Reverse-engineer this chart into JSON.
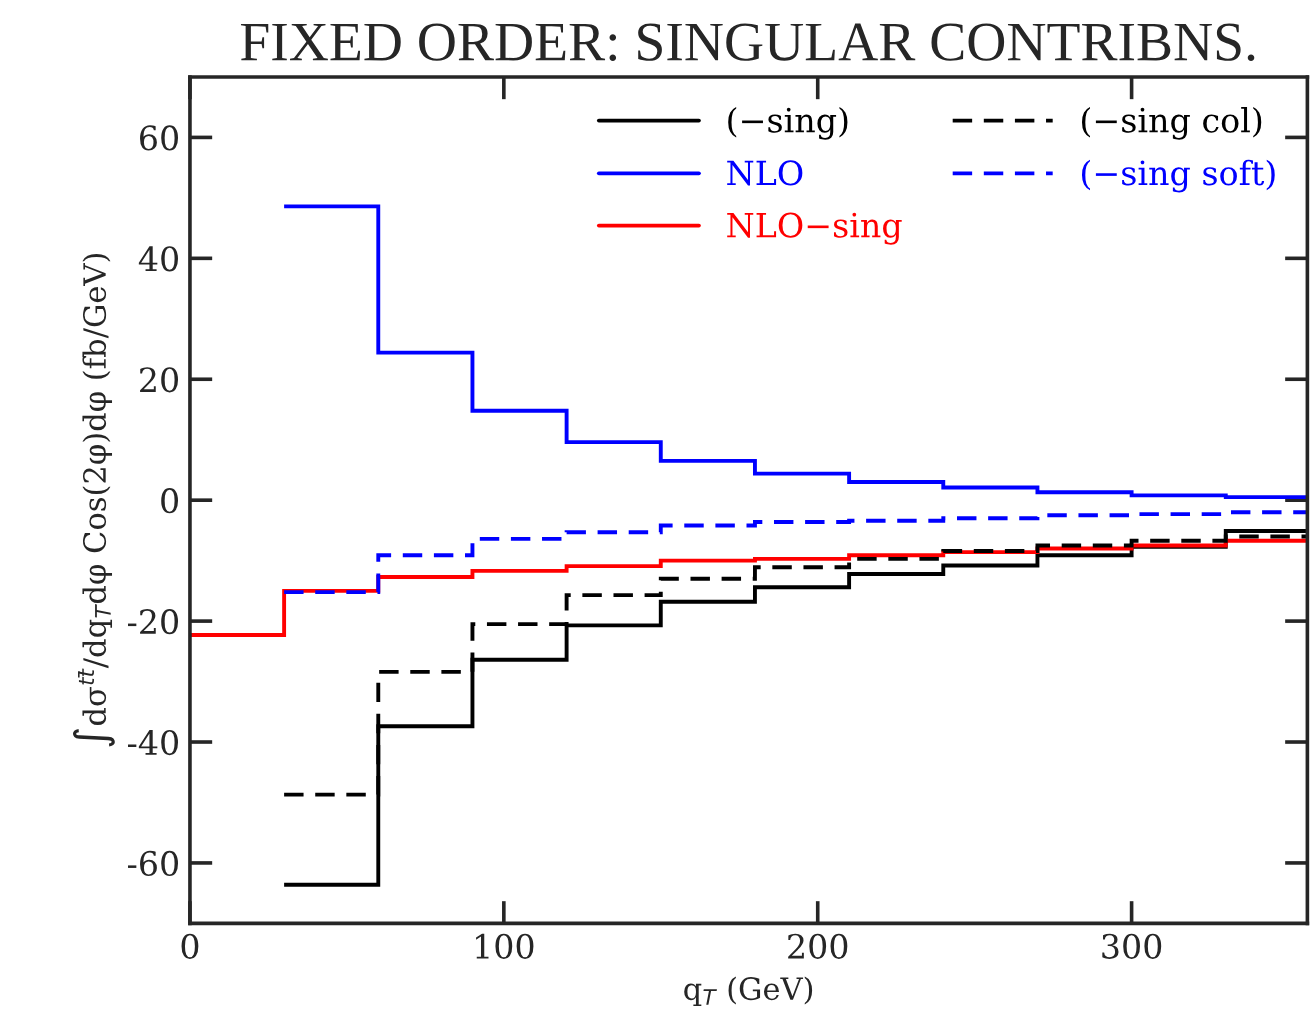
{
  "chart_data": {
    "type": "step",
    "title": "FIXED ORDER: SINGULAR CONTRIBNS.",
    "xlabel": "q$_{T}$ (GeV)",
    "ylabel": "∫dσ$^{tt̄}$/dq$_{T}$dφ Cos(2φ)dφ (fb/GeV)",
    "x": [
      0,
      30,
      60,
      90,
      120,
      150,
      180,
      210,
      240,
      270,
      300,
      330
    ],
    "series": [
      {
        "name": "(−sing)",
        "color": "#000000",
        "line_style": "solid",
        "values": [
          null,
          -63.6,
          -37.4,
          -26.4,
          -20.7,
          -16.8,
          -14.4,
          -12.2,
          -10.8,
          -9.1,
          -7.7,
          -5.1
        ]
      },
      {
        "name": "NLO",
        "color": "#0000ff",
        "line_style": "solid",
        "values": [
          null,
          48.6,
          24.4,
          14.8,
          9.6,
          6.5,
          4.4,
          3.0,
          2.1,
          1.3,
          0.8,
          0.5
        ]
      },
      {
        "name": "NLO−sing",
        "color": "#ff0000",
        "line_style": "solid",
        "values": [
          -22.3,
          -15.0,
          -12.7,
          -11.7,
          -10.9,
          -10.0,
          -9.7,
          -9.1,
          -8.6,
          -8.0,
          -7.5,
          -6.7
        ]
      },
      {
        "name": "(−sing col)",
        "color": "#000000",
        "line_style": "dashed",
        "values": [
          null,
          -48.7,
          -28.4,
          -20.5,
          -15.7,
          -13.0,
          -11.1,
          -9.7,
          -8.4,
          -7.5,
          -6.7,
          -6.0
        ]
      },
      {
        "name": "(−sing soft)",
        "color": "#0000ff",
        "line_style": "dashed",
        "values": [
          null,
          -15.2,
          -9.1,
          -6.4,
          -5.3,
          -4.2,
          -3.6,
          -3.4,
          -3.0,
          -2.5,
          -2.3,
          -2.0
        ]
      }
    ],
    "xlim": [
      0,
      356
    ],
    "ylim": [
      -70,
      70
    ],
    "xticks": [
      0,
      100,
      200,
      300
    ],
    "yticks": [
      -60,
      -40,
      -20,
      0,
      20,
      40,
      60
    ],
    "legend": "top right",
    "grid": false
  }
}
